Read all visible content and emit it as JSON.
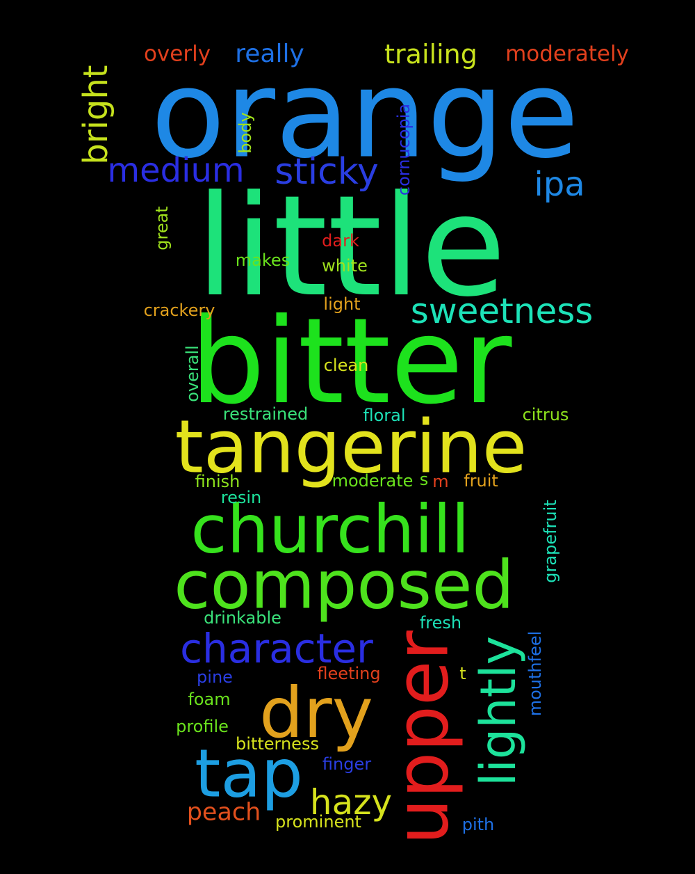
{
  "words": [
    {
      "text": "orange",
      "color": "#1e88e5"
    },
    {
      "text": "little",
      "color": "#1de27a"
    },
    {
      "text": "bitter",
      "color": "#1de21d"
    },
    {
      "text": "tangerine",
      "color": "#e2e21d"
    },
    {
      "text": "churchill",
      "color": "#36e21d"
    },
    {
      "text": "composed",
      "color": "#4ee21d"
    },
    {
      "text": "dry",
      "color": "#e2a11d"
    },
    {
      "text": "upper",
      "color": "#e21d1d"
    },
    {
      "text": "tap",
      "color": "#1d9ee2"
    },
    {
      "text": "character",
      "color": "#2a2ee2"
    },
    {
      "text": "lightly",
      "color": "#1de29b"
    },
    {
      "text": "sweetness",
      "color": "#1de2b8"
    },
    {
      "text": "medium",
      "color": "#2a2ee2"
    },
    {
      "text": "sticky",
      "color": "#2a3ee2"
    },
    {
      "text": "hazy",
      "color": "#d6e21d"
    },
    {
      "text": "ipa",
      "color": "#1e88e5"
    },
    {
      "text": "bright",
      "color": "#c6e21d"
    },
    {
      "text": "trailing",
      "color": "#c8e21d"
    },
    {
      "text": "moderately",
      "color": "#e2401d"
    },
    {
      "text": "overly",
      "color": "#e2401d"
    },
    {
      "text": "really",
      "color": "#1e70e5"
    },
    {
      "text": "peach",
      "color": "#e2501d"
    },
    {
      "text": "body",
      "color": "#a0e21d"
    },
    {
      "text": "cornucopia",
      "color": "#2a2ee2"
    },
    {
      "text": "great",
      "color": "#a0e21d"
    },
    {
      "text": "dark",
      "color": "#e21d1d"
    },
    {
      "text": "makes",
      "color": "#6ae21d"
    },
    {
      "text": "white",
      "color": "#a0e21d"
    },
    {
      "text": "crackery",
      "color": "#e2a11d"
    },
    {
      "text": "light",
      "color": "#e2a11d"
    },
    {
      "text": "clean",
      "color": "#d6e21d"
    },
    {
      "text": "overall",
      "color": "#3ae27a"
    },
    {
      "text": "restrained",
      "color": "#3ae27a"
    },
    {
      "text": "floral",
      "color": "#1de2b8"
    },
    {
      "text": "citrus",
      "color": "#8ee21d"
    },
    {
      "text": "finish",
      "color": "#8ee21d"
    },
    {
      "text": "moderate",
      "color": "#6ae21d"
    },
    {
      "text": "s",
      "color": "#6ae21d"
    },
    {
      "text": "m",
      "color": "#e2401d"
    },
    {
      "text": "fruit",
      "color": "#e2a11d"
    },
    {
      "text": "resin",
      "color": "#1de29b"
    },
    {
      "text": "grapefruit",
      "color": "#1de2b8"
    },
    {
      "text": "drinkable",
      "color": "#3ae27a"
    },
    {
      "text": "fresh",
      "color": "#1de2b8"
    },
    {
      "text": "mouthfeel",
      "color": "#1e70e5"
    },
    {
      "text": "pine",
      "color": "#2a3ee2"
    },
    {
      "text": "fleeting",
      "color": "#e2401d"
    },
    {
      "text": "t",
      "color": "#d6e21d"
    },
    {
      "text": "foam",
      "color": "#6ae21d"
    },
    {
      "text": "profile",
      "color": "#6ae21d"
    },
    {
      "text": "bitterness",
      "color": "#d6e21d"
    },
    {
      "text": "finger",
      "color": "#2a3ee2"
    },
    {
      "text": "prominent",
      "color": "#d6e21d"
    },
    {
      "text": "pith",
      "color": "#1e70e5"
    }
  ]
}
